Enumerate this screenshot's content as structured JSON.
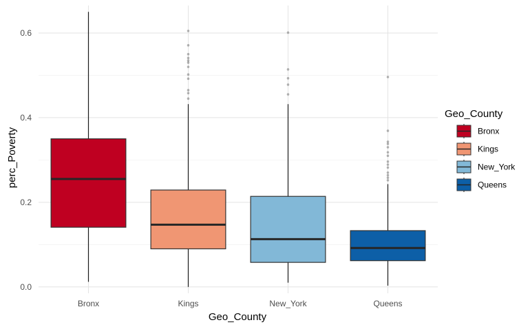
{
  "chart_data": {
    "type": "boxplot",
    "xlabel": "Geo_County",
    "ylabel": "perc_Poverty",
    "ylim": [
      -0.015,
      0.665
    ],
    "yticks": [
      0.0,
      0.2,
      0.4,
      0.6
    ],
    "ytick_labels": [
      "0.0",
      "0.2",
      "0.4",
      "0.6"
    ],
    "grid": true,
    "legend": {
      "title": "Geo_County",
      "position": "right"
    },
    "categories": [
      "Bronx",
      "Kings",
      "New_York",
      "Queens"
    ],
    "series": [
      {
        "name": "Bronx",
        "color": "#BF0021",
        "whisker_low": 0.012,
        "q1": 0.141,
        "median": 0.255,
        "q3": 0.35,
        "whisker_high": 0.65,
        "outliers": []
      },
      {
        "name": "Kings",
        "color": "#F09673",
        "whisker_low": 0.0,
        "q1": 0.09,
        "median": 0.147,
        "q3": 0.229,
        "whisker_high": 0.432,
        "outliers": [
          0.605,
          0.571,
          0.55,
          0.541,
          0.535,
          0.53,
          0.52,
          0.502,
          0.492,
          0.465,
          0.458,
          0.445
        ]
      },
      {
        "name": "New_York",
        "color": "#82B8D7",
        "whisker_low": 0.01,
        "q1": 0.058,
        "median": 0.113,
        "q3": 0.214,
        "whisker_high": 0.432,
        "outliers": [
          0.601,
          0.514,
          0.493,
          0.478,
          0.455
        ]
      },
      {
        "name": "Queens",
        "color": "#0D5FA7",
        "whisker_low": 0.003,
        "q1": 0.062,
        "median": 0.092,
        "q3": 0.133,
        "whisker_high": 0.243,
        "outliers": [
          0.496,
          0.369,
          0.343,
          0.338,
          0.33,
          0.318,
          0.31,
          0.296,
          0.289,
          0.282,
          0.27,
          0.264,
          0.258,
          0.252
        ]
      }
    ]
  }
}
